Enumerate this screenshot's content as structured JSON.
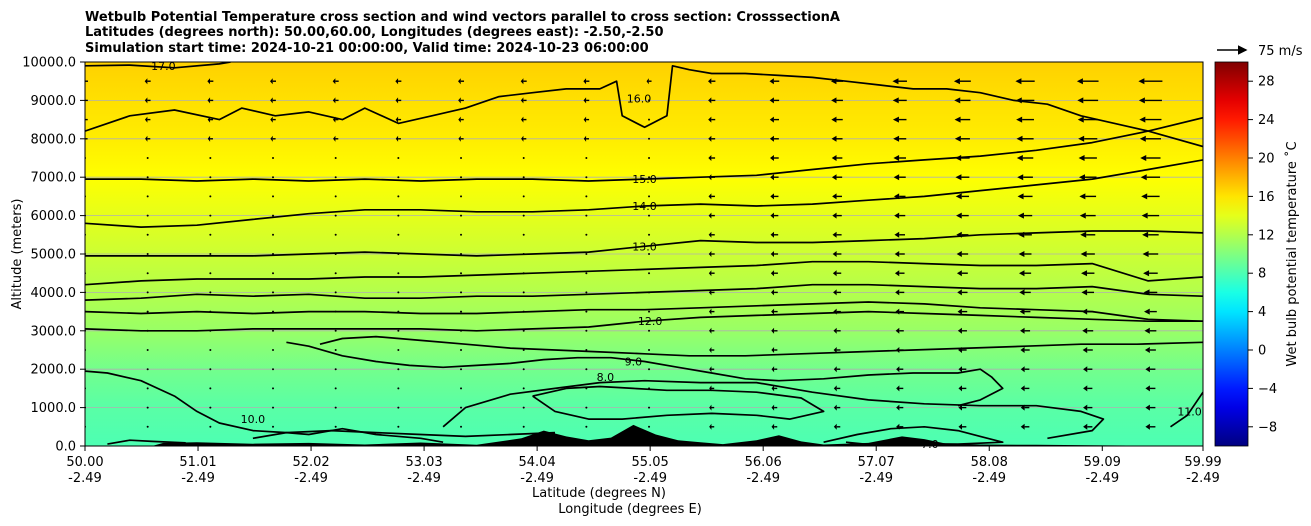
{
  "chart_data": {
    "type": "heatmap",
    "title_lines": [
      "Wetbulb Potential Temperature cross section and wind vectors parallel to cross section: CrosssectionA",
      "Latitudes (degrees north): 50.00,60.00, Longitudes (degrees east): -2.50,-2.50",
      "Simulation start time: 2024-10-21 00:00:00, Valid time: 2024-10-23 06:00:00"
    ],
    "xlabel": "Latitude (degrees N)",
    "xlabel2": "Longitude (degrees E)",
    "ylabel": "Altitude (meters)",
    "xlim": [
      50.0,
      59.99
    ],
    "ylim": [
      0,
      10000
    ],
    "x_ticks": [
      50.0,
      51.01,
      52.02,
      53.03,
      54.04,
      55.05,
      56.06,
      57.07,
      58.08,
      59.09,
      59.99
    ],
    "x_tick_labels": [
      "50.00",
      "51.01",
      "52.02",
      "53.03",
      "54.04",
      "55.05",
      "56.06",
      "57.07",
      "58.08",
      "59.09",
      "59.99"
    ],
    "x_tick_labels2": [
      "-2.49",
      "-2.49",
      "-2.49",
      "-2.49",
      "-2.49",
      "-2.49",
      "-2.49",
      "-2.49",
      "-2.49",
      "-2.49",
      "-2.49"
    ],
    "y_ticks": [
      0,
      1000,
      2000,
      3000,
      4000,
      5000,
      6000,
      7000,
      8000,
      9000,
      10000
    ],
    "y_tick_labels": [
      "0.0",
      "1000.0",
      "2000.0",
      "3000.0",
      "4000.0",
      "5000.0",
      "6000.0",
      "7000.0",
      "8000.0",
      "9000.0",
      "10000.0"
    ],
    "grid": "horizontal",
    "colorbar": {
      "label": "Wet bulb potential temperature ˚C",
      "range": [
        -10,
        30
      ],
      "ticks": [
        -8,
        -4,
        0,
        4,
        8,
        12,
        16,
        20,
        24,
        28
      ],
      "tick_labels": [
        "−8",
        "−4",
        "0",
        "4",
        "8",
        "12",
        "16",
        "20",
        "24",
        "28"
      ],
      "colormap": "jet"
    },
    "quiver_key": {
      "label": "75 m/s",
      "value": 75
    },
    "contour_levels": [
      {
        "level": 17.0,
        "label": "17.0",
        "label_at": [
          50.7,
          9900
        ]
      },
      {
        "level": 16.0,
        "label": "16.0",
        "label_at": [
          54.95,
          9050
        ]
      },
      {
        "level": 15.0,
        "label": "15.0",
        "label_at": [
          55.0,
          6950
        ]
      },
      {
        "level": 14.0,
        "label": "14.0",
        "label_at": [
          55.0,
          6250
        ]
      },
      {
        "level": 13.0,
        "label": "13.0",
        "label_at": [
          55.0,
          5200
        ]
      },
      {
        "level": 12.0,
        "label": "12.0",
        "label_at": [
          55.05,
          3250
        ]
      },
      {
        "level": 10.0,
        "label": "10.0",
        "label_at": [
          51.5,
          700
        ]
      },
      {
        "level": 9.0,
        "label": "9.0",
        "label_at": [
          54.9,
          2200
        ]
      },
      {
        "level": 8.0,
        "label": "8.0",
        "label_at": [
          54.65,
          1800
        ]
      },
      {
        "level": 7.0,
        "label": "7.0",
        "label_at": [
          57.55,
          50
        ]
      },
      {
        "level": 11.0,
        "label": "11.0",
        "label_at": [
          59.87,
          900
        ]
      }
    ],
    "contours": [
      {
        "level": 17.0,
        "x": [
          50.0,
          50.4,
          50.8,
          51.2,
          51.3
        ],
        "y": [
          9900,
          9920,
          9850,
          9950,
          10000
        ]
      },
      {
        "level": 16.0,
        "x": [
          50.0,
          50.4,
          50.8,
          51.2,
          51.4,
          51.7,
          52.0,
          52.3,
          52.5,
          52.8,
          53.1,
          53.4,
          53.7,
          54.0,
          54.3,
          54.6,
          54.75,
          54.8,
          55.0,
          55.2,
          55.25,
          55.4,
          55.6,
          55.9,
          56.2,
          56.5,
          56.8,
          57.1,
          57.4,
          57.7,
          58.0,
          58.3,
          58.6,
          58.9,
          59.2,
          59.5,
          59.99
        ],
        "y": [
          8200,
          8600,
          8750,
          8500,
          8800,
          8600,
          8700,
          8500,
          8800,
          8400,
          8600,
          8800,
          9100,
          9200,
          9300,
          9300,
          9500,
          8600,
          8300,
          8600,
          9900,
          9800,
          9700,
          9700,
          9650,
          9600,
          9500,
          9400,
          9300,
          9300,
          9200,
          9000,
          8900,
          8600,
          8400,
          8200,
          7800
        ]
      },
      {
        "level": 15.0,
        "x": [
          50.0,
          50.5,
          51.0,
          51.5,
          52.0,
          52.5,
          53.0,
          53.5,
          54.0,
          54.5,
          55.0,
          55.5,
          56.0,
          56.5,
          57.0,
          57.5,
          58.0,
          58.5,
          59.0,
          59.5,
          59.99
        ],
        "y": [
          6950,
          6950,
          6900,
          6950,
          6900,
          6950,
          6900,
          6950,
          6950,
          6900,
          6950,
          7000,
          7050,
          7200,
          7350,
          7450,
          7550,
          7700,
          7900,
          8200,
          8550
        ]
      },
      {
        "level": 14.0,
        "x": [
          50.0,
          50.5,
          51.0,
          51.5,
          52.0,
          52.5,
          53.0,
          53.5,
          54.0,
          54.5,
          55.0,
          55.5,
          56.0,
          56.5,
          57.0,
          57.5,
          58.0,
          58.5,
          59.0,
          59.5,
          59.99
        ],
        "y": [
          5800,
          5700,
          5750,
          5900,
          6050,
          6150,
          6150,
          6100,
          6100,
          6150,
          6250,
          6300,
          6250,
          6300,
          6400,
          6500,
          6650,
          6800,
          6950,
          7200,
          7450
        ]
      },
      {
        "level": 13.0,
        "x": [
          50.0,
          50.5,
          51.0,
          51.5,
          52.0,
          52.5,
          53.0,
          53.5,
          54.0,
          54.5,
          55.0,
          55.5,
          56.0,
          56.5,
          57.0,
          57.5,
          58.0,
          58.5,
          59.0,
          59.5,
          59.99
        ],
        "y": [
          4950,
          4950,
          4950,
          4950,
          5000,
          5050,
          5000,
          4950,
          5000,
          5050,
          5200,
          5350,
          5300,
          5300,
          5350,
          5400,
          5500,
          5550,
          5600,
          5600,
          5550
        ]
      },
      {
        "level": 12.0,
        "x": [
          50.0,
          50.5,
          51.0,
          51.5,
          52.0,
          52.5,
          53.0,
          53.5,
          54.0,
          54.5,
          55.0,
          55.5,
          56.0,
          56.5,
          57.0,
          57.5,
          58.0,
          58.5,
          59.0,
          59.5,
          59.99
        ],
        "y": [
          4200,
          4300,
          4350,
          4350,
          4350,
          4400,
          4400,
          4450,
          4500,
          4550,
          4600,
          4650,
          4700,
          4800,
          4800,
          4750,
          4700,
          4700,
          4750,
          4300,
          4400
        ]
      },
      {
        "level": 12.0,
        "x": [
          50.0,
          50.5,
          51.0,
          51.5,
          52.0,
          52.5,
          53.0,
          53.5,
          54.0,
          54.5,
          55.0,
          55.5,
          56.0,
          56.5,
          57.0,
          57.5,
          58.0,
          58.5,
          59.0,
          59.5,
          59.99
        ],
        "y": [
          3800,
          3850,
          3950,
          3900,
          3950,
          3850,
          3850,
          3900,
          3900,
          3950,
          4000,
          4050,
          4100,
          4200,
          4200,
          4150,
          4100,
          4100,
          4150,
          3950,
          3900
        ]
      },
      {
        "level": 12.0,
        "x": [
          50.0,
          50.5,
          51.0,
          51.5,
          52.0,
          52.5,
          53.0,
          53.5,
          54.0,
          54.5,
          55.0,
          55.5,
          56.0,
          56.5,
          57.0,
          57.5,
          58.0,
          58.5,
          59.0,
          59.5,
          59.99
        ],
        "y": [
          3500,
          3450,
          3500,
          3450,
          3500,
          3500,
          3450,
          3450,
          3500,
          3550,
          3550,
          3600,
          3650,
          3700,
          3750,
          3700,
          3600,
          3550,
          3500,
          3300,
          3250
        ]
      },
      {
        "level": 12.0,
        "x": [
          50.0,
          50.5,
          51.0,
          51.5,
          52.0,
          52.5,
          53.0,
          53.5,
          54.0,
          54.5,
          55.0,
          55.5,
          56.0,
          56.5,
          57.0,
          57.5,
          58.0,
          58.5,
          59.0,
          59.5,
          59.99
        ],
        "y": [
          3050,
          3000,
          3000,
          3050,
          3050,
          3050,
          3050,
          3000,
          3050,
          3100,
          3250,
          3350,
          3400,
          3450,
          3500,
          3450,
          3400,
          3350,
          3300,
          3250,
          3250
        ]
      },
      {
        "level": 9.0,
        "x": [
          51.8,
          52.0,
          52.3,
          52.6,
          52.9,
          53.2,
          53.5,
          53.8,
          54.1,
          54.4,
          54.7,
          55.0,
          55.3,
          55.6,
          55.9,
          56.2,
          56.6,
          57.0,
          57.4,
          57.8,
          58.0,
          58.1,
          58.2,
          58.0,
          57.8
        ],
        "y": [
          2700,
          2600,
          2350,
          2200,
          2100,
          2050,
          2100,
          2150,
          2250,
          2300,
          2300,
          2200,
          2050,
          1900,
          1750,
          1700,
          1750,
          1850,
          1900,
          1900,
          2000,
          1800,
          1500,
          1200,
          1050
        ]
      },
      {
        "level": 9.0,
        "x": [
          52.1,
          52.3,
          52.6,
          53.0,
          53.4,
          53.8,
          54.2,
          54.6,
          55.0,
          55.4,
          55.9,
          56.4,
          56.9,
          57.4,
          57.9,
          58.4,
          58.9,
          59.4,
          59.99
        ],
        "y": [
          2650,
          2800,
          2850,
          2750,
          2650,
          2550,
          2500,
          2450,
          2400,
          2350,
          2350,
          2400,
          2450,
          2500,
          2550,
          2600,
          2650,
          2650,
          2700
        ]
      },
      {
        "level": 8.0,
        "x": [
          54.0,
          54.3,
          54.6,
          54.9,
          55.2,
          55.6,
          56.0,
          56.4,
          56.6,
          56.3,
          56.0,
          55.6,
          55.2,
          54.8,
          54.5,
          54.2,
          54.0
        ],
        "y": [
          1300,
          1500,
          1550,
          1500,
          1450,
          1450,
          1400,
          1250,
          900,
          700,
          800,
          850,
          800,
          700,
          700,
          900,
          1300
        ]
      },
      {
        "level": 8.0,
        "x": [
          53.2,
          53.4,
          53.8,
          54.2,
          54.6,
          55.0,
          55.5,
          56.0,
          56.5,
          57.0,
          57.5,
          58.0,
          58.5,
          58.9,
          59.1,
          59.0,
          58.6
        ],
        "y": [
          500,
          1000,
          1350,
          1500,
          1650,
          1700,
          1650,
          1650,
          1400,
          1200,
          1100,
          1050,
          1050,
          900,
          700,
          400,
          200
        ]
      },
      {
        "level": 10.0,
        "x": [
          50.0,
          50.2,
          50.5,
          50.8,
          51.0,
          51.2,
          51.5,
          51.8,
          52.2,
          52.6,
          53.0,
          53.4,
          53.8,
          54.2
        ],
        "y": [
          1950,
          1900,
          1700,
          1300,
          900,
          600,
          400,
          350,
          400,
          350,
          300,
          250,
          300,
          350
        ]
      },
      {
        "level": 10.0,
        "x": [
          51.5,
          51.8,
          52.0,
          52.3,
          52.6,
          53.0,
          53.2
        ],
        "y": [
          200,
          350,
          300,
          450,
          300,
          200,
          100
        ]
      },
      {
        "level": 7.0,
        "x": [
          56.6,
          56.9,
          57.2,
          57.5,
          57.8,
          58.0,
          58.2,
          57.8,
          57.4,
          57.0,
          56.8
        ],
        "y": [
          100,
          300,
          450,
          500,
          400,
          250,
          100,
          50,
          60,
          40,
          100
        ]
      },
      {
        "level": 11.0,
        "x": [
          50.2,
          50.4,
          50.6,
          50.9
        ],
        "y": [
          50,
          150,
          120,
          80
        ]
      },
      {
        "level": 11.0,
        "x": [
          59.7,
          59.85,
          59.99
        ],
        "y": [
          500,
          800,
          1400
        ]
      }
    ],
    "terrain": {
      "x": [
        50.0,
        50.6,
        50.7,
        51.0,
        51.5,
        52.0,
        52.5,
        53.0,
        53.5,
        53.9,
        54.1,
        54.3,
        54.5,
        54.7,
        54.9,
        55.1,
        55.3,
        55.5,
        55.7,
        56.0,
        56.2,
        56.4,
        56.6,
        57.0,
        57.3,
        57.5,
        57.7,
        58.0,
        58.5,
        59.0,
        59.5,
        59.99
      ],
      "y": [
        0,
        0,
        80,
        100,
        60,
        80,
        40,
        90,
        30,
        200,
        400,
        250,
        150,
        220,
        550,
        300,
        150,
        100,
        50,
        150,
        280,
        120,
        40,
        80,
        250,
        180,
        60,
        40,
        30,
        20,
        10,
        0
      ]
    },
    "temperature_field": {
      "description_levels_by_altitude_m": [
        0,
        1000,
        2000,
        3000,
        4000,
        5000,
        6000,
        7000,
        8000,
        9000,
        10000
      ],
      "values_C": [
        8.0,
        8.5,
        9.5,
        11.0,
        12.0,
        13.0,
        14.0,
        15.0,
        15.7,
        16.2,
        16.8
      ]
    },
    "wind_vectors": {
      "x_positions": [
        50.0,
        50.56,
        51.12,
        51.68,
        52.24,
        52.8,
        53.36,
        53.92,
        54.48,
        55.04,
        55.6,
        56.16,
        56.72,
        57.28,
        57.84,
        58.4,
        58.96,
        59.52
      ],
      "altitudes": [
        500,
        1000,
        1500,
        2000,
        2500,
        3000,
        3500,
        4000,
        4500,
        5000,
        5500,
        6000,
        6500,
        7000,
        7500,
        8000,
        8500,
        9000,
        9500
      ],
      "direction": "westward (toward lower latitude)",
      "speed_ms_upper": 25
    }
  }
}
